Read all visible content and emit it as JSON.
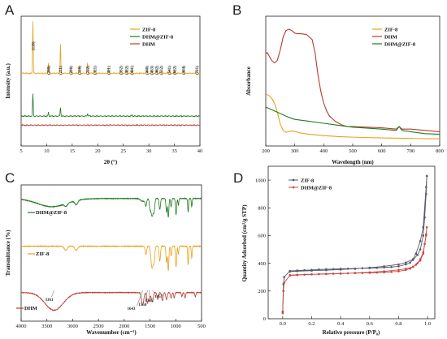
{
  "chart_data": [
    {
      "panel": "A",
      "type": "line",
      "xlabel": "2θ (°)",
      "ylabel": "Intensity (a.u.)",
      "xlim": [
        5,
        40
      ],
      "xticks": [
        5,
        10,
        15,
        20,
        25,
        30,
        35,
        40
      ],
      "legend": {
        "placement": "top-right",
        "entries": [
          "ZIF-8",
          "DHM@ZIF-8",
          "DHM"
        ]
      },
      "series": [
        {
          "name": "ZIF-8",
          "color": "#E8A21C",
          "baseline": 0.56,
          "peaks": [
            [
              7.3,
              0.4
            ],
            [
              10.35,
              0.08
            ],
            [
              12.7,
              0.22
            ],
            [
              14.7,
              0.03
            ],
            [
              16.4,
              0.05
            ],
            [
              18.0,
              0.08
            ],
            [
              19.4,
              0.02
            ],
            [
              22.1,
              0.04
            ],
            [
              24.5,
              0.02
            ],
            [
              25.6,
              0.03
            ],
            [
              26.7,
              0.04
            ],
            [
              29.6,
              0.02
            ],
            [
              30.6,
              0.02
            ],
            [
              31.5,
              0.02
            ],
            [
              32.4,
              0.02
            ],
            [
              34.0,
              0.02
            ],
            [
              35.0,
              0.02
            ],
            [
              36.8,
              0.02
            ],
            [
              39.4,
              0.02
            ]
          ]
        },
        {
          "name": "DHM@ZIF-8",
          "color": "#1E7B1E",
          "baseline": 0.23,
          "peaks": [
            [
              7.3,
              0.17
            ],
            [
              10.35,
              0.03
            ],
            [
              12.7,
              0.07
            ],
            [
              18.0,
              0.02
            ],
            [
              26.7,
              0.01
            ]
          ]
        },
        {
          "name": "DHM",
          "color": "#B83A2E",
          "baseline": 0.16,
          "peaks": []
        }
      ],
      "annotations": [
        {
          "text": "(110)",
          "x": 7.3
        },
        {
          "text": "(200)",
          "x": 10.35
        },
        {
          "text": "(211)",
          "x": 12.7
        },
        {
          "text": "(220)",
          "x": 14.7
        },
        {
          "text": "(310)",
          "x": 16.4
        },
        {
          "text": "(222)",
          "x": 18.0
        },
        {
          "text": "(321)",
          "x": 19.4
        },
        {
          "text": "(411)",
          "x": 22.1
        },
        {
          "text": "(332)",
          "x": 24.5
        },
        {
          "text": "(422)",
          "x": 25.6
        },
        {
          "text": "(431)",
          "x": 26.7
        },
        {
          "text": "(440)",
          "x": 29.6
        },
        {
          "text": "(433)",
          "x": 30.6
        },
        {
          "text": "(442)",
          "x": 31.5
        },
        {
          "text": "(532)",
          "x": 32.4
        },
        {
          "text": "(541)",
          "x": 34.0
        },
        {
          "text": "(622)",
          "x": 35.0
        },
        {
          "text": "(444)",
          "x": 36.8
        },
        {
          "text": "(721)",
          "x": 39.4
        }
      ],
      "grid": false
    },
    {
      "panel": "B",
      "type": "line",
      "xlabel": "Wavelength (nm)",
      "ylabel": "Absorbance",
      "xlim": [
        200,
        800
      ],
      "ylim": [
        0,
        1.0
      ],
      "xticks": [
        200,
        300,
        400,
        500,
        600,
        700,
        800
      ],
      "legend": {
        "placement": "top-right",
        "entries": [
          "ZIF-8",
          "DHM",
          "DHM@ZIF-8"
        ]
      },
      "series": [
        {
          "name": "ZIF-8",
          "color": "#E8A21C",
          "x": [
            200,
            210,
            220,
            230,
            240,
            250,
            260,
            270,
            280,
            290,
            300,
            320,
            350,
            400,
            450,
            500,
            600,
            700,
            800
          ],
          "y": [
            0.4,
            0.39,
            0.37,
            0.33,
            0.26,
            0.17,
            0.12,
            0.105,
            0.11,
            0.115,
            0.112,
            0.1,
            0.09,
            0.08,
            0.072,
            0.068,
            0.062,
            0.058,
            0.055
          ]
        },
        {
          "name": "DHM",
          "color": "#B83A2E",
          "x": [
            200,
            205,
            210,
            220,
            230,
            240,
            250,
            260,
            270,
            280,
            290,
            300,
            310,
            320,
            340,
            360,
            370,
            380,
            390,
            400,
            410,
            420,
            440,
            460,
            480,
            500,
            600,
            650,
            660,
            670,
            700,
            750,
            800
          ],
          "y": [
            0.71,
            0.72,
            0.7,
            0.66,
            0.64,
            0.66,
            0.74,
            0.84,
            0.89,
            0.9,
            0.89,
            0.87,
            0.865,
            0.865,
            0.86,
            0.82,
            0.72,
            0.55,
            0.42,
            0.33,
            0.27,
            0.23,
            0.19,
            0.165,
            0.15,
            0.15,
            0.14,
            0.13,
            0.15,
            0.13,
            0.13,
            0.12,
            0.11
          ]
        },
        {
          "name": "DHM@ZIF-8",
          "color": "#1E7B1E",
          "x": [
            200,
            210,
            220,
            230,
            240,
            260,
            280,
            300,
            350,
            400,
            450,
            500,
            600,
            650,
            660,
            670,
            700,
            750,
            800
          ],
          "y": [
            0.3,
            0.29,
            0.28,
            0.27,
            0.26,
            0.24,
            0.22,
            0.205,
            0.19,
            0.175,
            0.16,
            0.145,
            0.13,
            0.12,
            0.15,
            0.12,
            0.11,
            0.095,
            0.09
          ]
        }
      ],
      "grid": false
    },
    {
      "panel": "C",
      "type": "line",
      "xlabel": "Wavenumber (cm⁻¹)",
      "ylabel": "Transmittance (%)",
      "xlim": [
        4000,
        500
      ],
      "xticks": [
        4000,
        3500,
        3000,
        2500,
        2000,
        1500,
        1000,
        500
      ],
      "series": [
        {
          "name": "DHM@ZIF-8",
          "color": "#1E7B1E",
          "offset": 0.9,
          "label": "DHM@ZIF-8",
          "dips": [
            [
              3400,
              0.06,
              400
            ],
            [
              3130,
              0.02,
              40
            ],
            [
              2930,
              0.03,
              40
            ],
            [
              1640,
              0.02,
              60
            ],
            [
              1580,
              0.05,
              20
            ],
            [
              1500,
              0.06,
              18
            ],
            [
              1460,
              0.13,
              30
            ],
            [
              1420,
              0.08,
              20
            ],
            [
              1310,
              0.08,
              18
            ],
            [
              1180,
              0.1,
              15
            ],
            [
              1145,
              0.14,
              15
            ],
            [
              1090,
              0.06,
              15
            ],
            [
              995,
              0.12,
              15
            ],
            [
              950,
              0.05,
              12
            ],
            [
              760,
              0.1,
              12
            ],
            [
              690,
              0.06,
              12
            ]
          ]
        },
        {
          "name": "ZIF-8",
          "color": "#E8A21C",
          "offset": 0.55,
          "label": "ZIF-8",
          "dips": [
            [
              3135,
              0.03,
              40
            ],
            [
              2930,
              0.03,
              40
            ],
            [
              1580,
              0.06,
              20
            ],
            [
              1460,
              0.16,
              30
            ],
            [
              1420,
              0.1,
              20
            ],
            [
              1310,
              0.11,
              18
            ],
            [
              1180,
              0.12,
              15
            ],
            [
              1145,
              0.18,
              15
            ],
            [
              1090,
              0.07,
              15
            ],
            [
              995,
              0.15,
              15
            ],
            [
              950,
              0.06,
              12
            ],
            [
              760,
              0.14,
              12
            ],
            [
              690,
              0.09,
              12
            ]
          ]
        },
        {
          "name": "DHM",
          "color": "#B83A2E",
          "offset": 0.21,
          "label": "DHM",
          "dips": [
            [
              3361,
              0.13,
              250
            ],
            [
              1643,
              0.09,
              30
            ],
            [
              1550,
              0.08,
              20
            ],
            [
              1512,
              0.06,
              18
            ],
            [
              1457,
              0.07,
              25
            ],
            [
              1350,
              0.05,
              20
            ],
            [
              1260,
              0.06,
              20
            ],
            [
              1180,
              0.05,
              20
            ],
            [
              1090,
              0.04,
              18
            ],
            [
              1030,
              0.04,
              15
            ],
            [
              880,
              0.03,
              15
            ],
            [
              820,
              0.04,
              15
            ],
            [
              620,
              0.03,
              15
            ]
          ]
        }
      ],
      "annotations": [
        {
          "text": "3361",
          "x": 3361
        },
        {
          "text": "1643",
          "x": 1643
        },
        {
          "text": "1550",
          "x": 1550
        },
        {
          "text": "1512",
          "x": 1512
        },
        {
          "text": "1457",
          "x": 1457
        }
      ],
      "grid": false
    },
    {
      "panel": "D",
      "type": "line",
      "xlabel": "Relative pressure (P/P₀)",
      "ylabel": "Quantity Adsorbed (cm³/g STP)",
      "xlim": [
        -0.1,
        1.05
      ],
      "ylim": [
        0,
        1100
      ],
      "xticks": [
        0.0,
        0.2,
        0.4,
        0.6,
        0.8,
        1.0
      ],
      "yticks": [
        0,
        200,
        400,
        600,
        800,
        1000
      ],
      "legend": {
        "placement": "top-left",
        "entries": [
          "ZIF-8",
          "DHM@ZIF-8"
        ]
      },
      "series": [
        {
          "name": "ZIF-8",
          "color": "#555a6a",
          "x": [
            0.0,
            0.005,
            0.01,
            0.05,
            0.1,
            0.15,
            0.2,
            0.25,
            0.3,
            0.35,
            0.4,
            0.45,
            0.5,
            0.55,
            0.6,
            0.65,
            0.7,
            0.75,
            0.8,
            0.85,
            0.88,
            0.9,
            0.93,
            0.95,
            0.97,
            0.98,
            0.99,
            0.995,
            0.99,
            0.97,
            0.95,
            0.92,
            0.9,
            0.85,
            0.8,
            0.7,
            0.6,
            0.5,
            0.4,
            0.3,
            0.2,
            0.1,
            0.05
          ],
          "y": [
            50,
            250,
            300,
            345,
            348,
            350,
            352,
            355,
            357,
            358,
            360,
            361,
            362,
            364,
            365,
            367,
            370,
            373,
            378,
            392,
            405,
            425,
            460,
            500,
            600,
            730,
            900,
            1030,
            950,
            660,
            560,
            470,
            430,
            405,
            392,
            378,
            368,
            360,
            355,
            350,
            347,
            343,
            340
          ]
        },
        {
          "name": "DHM@ZIF-8",
          "color": "#c84b42",
          "x": [
            0.0,
            0.005,
            0.01,
            0.05,
            0.1,
            0.15,
            0.2,
            0.25,
            0.3,
            0.35,
            0.4,
            0.45,
            0.5,
            0.55,
            0.6,
            0.65,
            0.7,
            0.75,
            0.8,
            0.85,
            0.88,
            0.9,
            0.93,
            0.95,
            0.97,
            0.98,
            0.99,
            0.995,
            0.99,
            0.97,
            0.95,
            0.92,
            0.9,
            0.85,
            0.8,
            0.7,
            0.6,
            0.5,
            0.4,
            0.3,
            0.2,
            0.1,
            0.05
          ],
          "y": [
            40,
            200,
            260,
            312,
            315,
            318,
            320,
            322,
            324,
            325,
            327,
            328,
            329,
            330,
            331,
            333,
            335,
            338,
            342,
            352,
            362,
            375,
            400,
            430,
            480,
            540,
            610,
            660,
            600,
            470,
            420,
            390,
            375,
            360,
            352,
            342,
            335,
            330,
            325,
            322,
            320,
            317,
            315
          ]
        }
      ],
      "grid": false
    }
  ]
}
